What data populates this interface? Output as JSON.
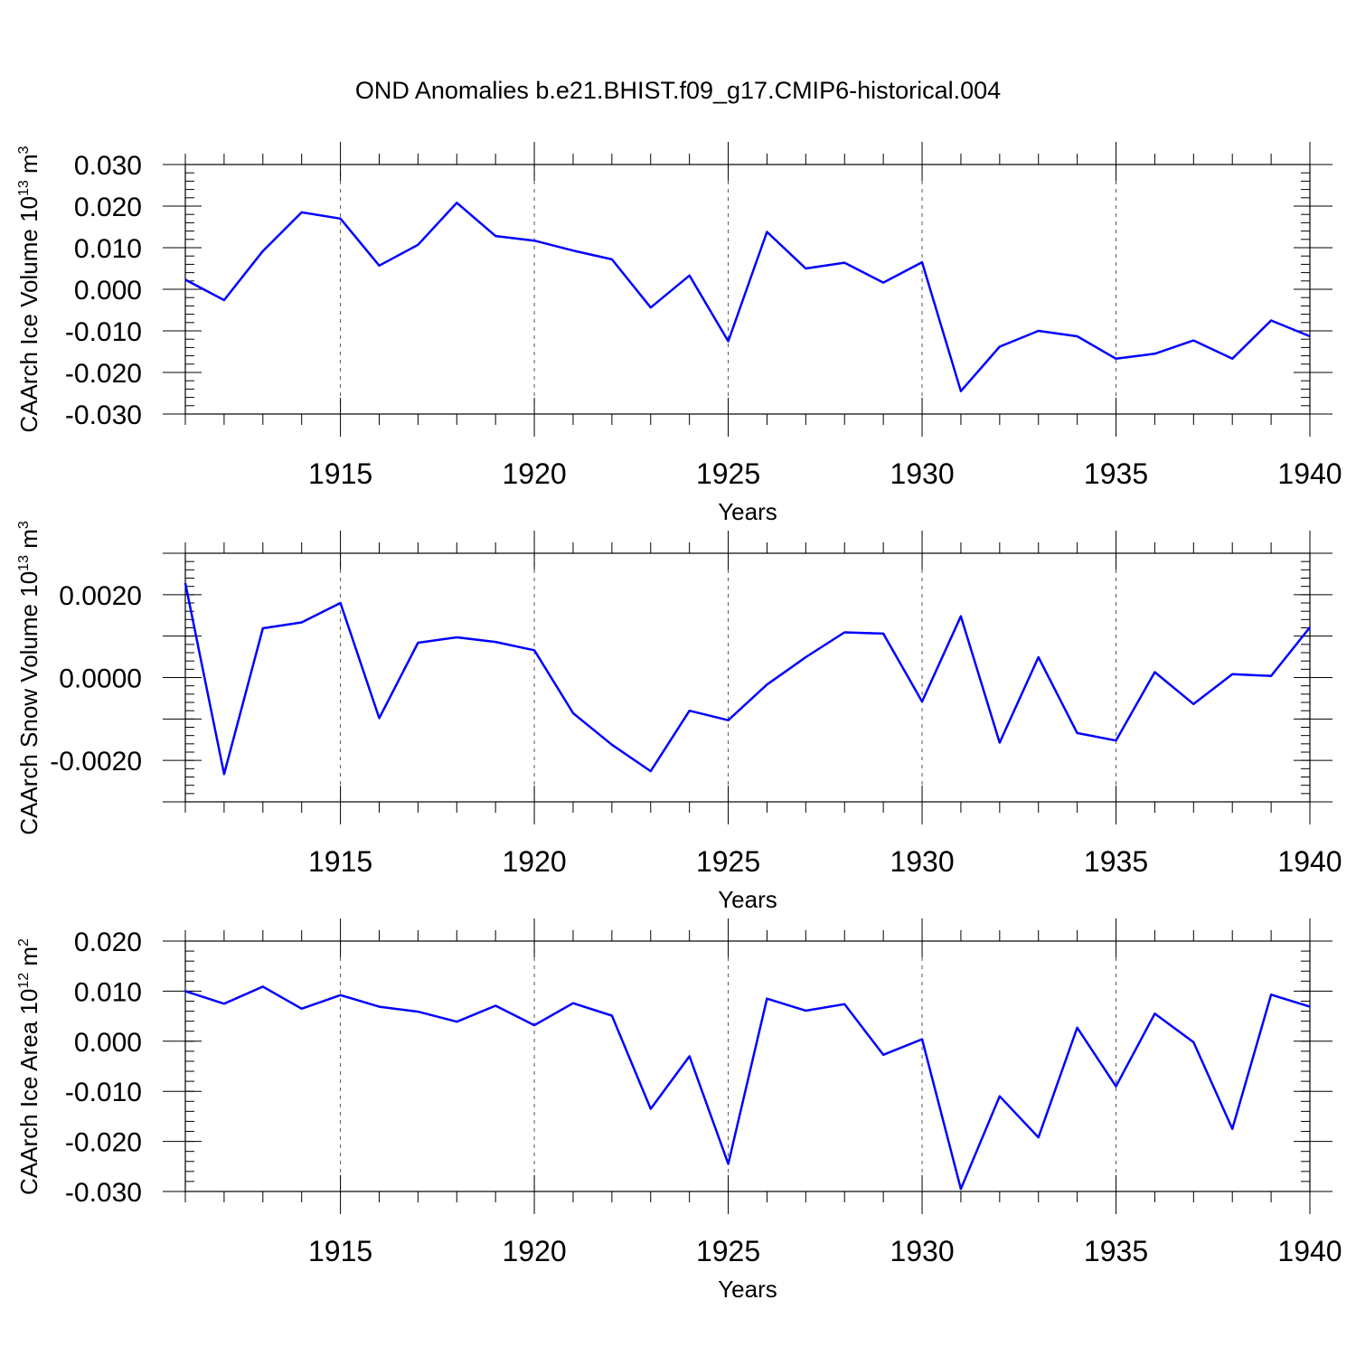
{
  "figure": {
    "title": "OND Anomalies b.e21.BHIST.f09_g17.CMIP6-historical.004"
  },
  "chart_data": [
    {
      "type": "line",
      "name": "ice-volume",
      "title": "",
      "xlabel": "Years",
      "ylabel": {
        "text": "CAArch Ice Volume 10",
        "sup": "13",
        "unit": " m",
        "unit_sup": "3"
      },
      "x": [
        1911,
        1912,
        1913,
        1914,
        1915,
        1916,
        1917,
        1918,
        1919,
        1920,
        1921,
        1922,
        1923,
        1924,
        1925,
        1926,
        1927,
        1928,
        1929,
        1930,
        1931,
        1932,
        1933,
        1934,
        1935,
        1936,
        1937,
        1938,
        1939,
        1940
      ],
      "series": [
        {
          "name": "CAArch Ice Volume",
          "color": "#0000ff",
          "values": [
            0.0023,
            -0.0026,
            0.0092,
            0.0185,
            0.017,
            0.0057,
            0.0107,
            0.0208,
            0.0128,
            0.0117,
            0.0093,
            0.0072,
            -0.0044,
            0.0033,
            -0.0125,
            0.0138,
            0.005,
            0.0064,
            0.0016,
            0.0065,
            -0.0245,
            -0.0138,
            -0.01,
            -0.0113,
            -0.0167,
            -0.0155,
            -0.0123,
            -0.0167,
            -0.0075,
            -0.0113
          ]
        }
      ],
      "xlim": [
        1911,
        1940
      ],
      "ylim": [
        -0.03,
        0.03
      ],
      "yticks": [
        -0.03,
        -0.02,
        -0.01,
        0.0,
        0.01,
        0.02,
        0.03
      ],
      "ytick_labels": [
        "-0.030",
        "-0.020",
        "-0.010",
        "0.000",
        "0.010",
        "0.020",
        "0.030"
      ],
      "yminor": 0.002,
      "xticks": [
        1915,
        1920,
        1925,
        1930,
        1935,
        1940
      ],
      "xtick_labels": [
        "1915",
        "1920",
        "1925",
        "1930",
        "1935",
        "1940"
      ]
    },
    {
      "type": "line",
      "name": "snow-volume",
      "title": "",
      "xlabel": "Years",
      "ylabel": {
        "text": "CAArch Snow Volume 10",
        "sup": "13",
        "unit": " m",
        "unit_sup": "3"
      },
      "x": [
        1911,
        1912,
        1913,
        1914,
        1915,
        1916,
        1917,
        1918,
        1919,
        1920,
        1921,
        1922,
        1923,
        1924,
        1925,
        1926,
        1927,
        1928,
        1929,
        1930,
        1931,
        1932,
        1933,
        1934,
        1935,
        1936,
        1937,
        1938,
        1939,
        1940
      ],
      "series": [
        {
          "name": "CAArch Snow Volume",
          "color": "#0000ff",
          "values": [
            0.00228,
            -0.00233,
            0.00119,
            0.00133,
            0.0018,
            -0.00098,
            0.00084,
            0.00097,
            0.00086,
            0.00066,
            -0.00086,
            -0.00162,
            -0.00226,
            -0.0008,
            -0.00103,
            -0.00017,
            0.00049,
            0.00109,
            0.00106,
            -0.00058,
            0.00148,
            -0.00157,
            0.00049,
            -0.00134,
            -0.00152,
            0.00013,
            -0.00064,
            8e-05,
            4e-05,
            0.00121
          ]
        }
      ],
      "xlim": [
        1911,
        1940
      ],
      "ylim": [
        -0.003,
        0.003
      ],
      "yticks": [
        -0.002,
        0.0,
        0.002
      ],
      "ytick_labels": [
        "-0.0020",
        "0.0000",
        "0.0020"
      ],
      "ymajor_step": 0.001,
      "yminor": 0.0002,
      "xticks": [
        1915,
        1920,
        1925,
        1930,
        1935,
        1940
      ],
      "xtick_labels": [
        "1915",
        "1920",
        "1925",
        "1930",
        "1935",
        "1940"
      ]
    },
    {
      "type": "line",
      "name": "ice-area",
      "title": "",
      "xlabel": "Years",
      "ylabel": {
        "text": "CAArch Ice Area 10",
        "sup": "12",
        "unit": " m",
        "unit_sup": "2"
      },
      "x": [
        1911,
        1912,
        1913,
        1914,
        1915,
        1916,
        1917,
        1918,
        1919,
        1920,
        1921,
        1922,
        1923,
        1924,
        1925,
        1926,
        1927,
        1928,
        1929,
        1930,
        1931,
        1932,
        1933,
        1934,
        1935,
        1936,
        1937,
        1938,
        1939,
        1940
      ],
      "series": [
        {
          "name": "CAArch Ice Area",
          "color": "#0000ff",
          "values": [
            0.01,
            0.0075,
            0.0109,
            0.0065,
            0.0092,
            0.0069,
            0.0059,
            0.0039,
            0.0071,
            0.0032,
            0.0076,
            0.0051,
            -0.0135,
            -0.003,
            -0.0245,
            0.0085,
            0.0061,
            0.0074,
            -0.0027,
            0.0004,
            -0.0295,
            -0.011,
            -0.0192,
            0.0027,
            -0.009,
            0.0055,
            -0.0002,
            -0.0175,
            0.0093,
            0.0069
          ]
        }
      ],
      "xlim": [
        1911,
        1940
      ],
      "ylim": [
        -0.03,
        0.02
      ],
      "yticks": [
        -0.03,
        -0.02,
        -0.01,
        0.0,
        0.01,
        0.02
      ],
      "ytick_labels": [
        "-0.030",
        "-0.020",
        "-0.010",
        "0.000",
        "0.010",
        "0.020"
      ],
      "yminor": 0.002,
      "xticks": [
        1915,
        1920,
        1925,
        1930,
        1935,
        1940
      ],
      "xtick_labels": [
        "1915",
        "1920",
        "1925",
        "1930",
        "1935",
        "1940"
      ]
    }
  ]
}
